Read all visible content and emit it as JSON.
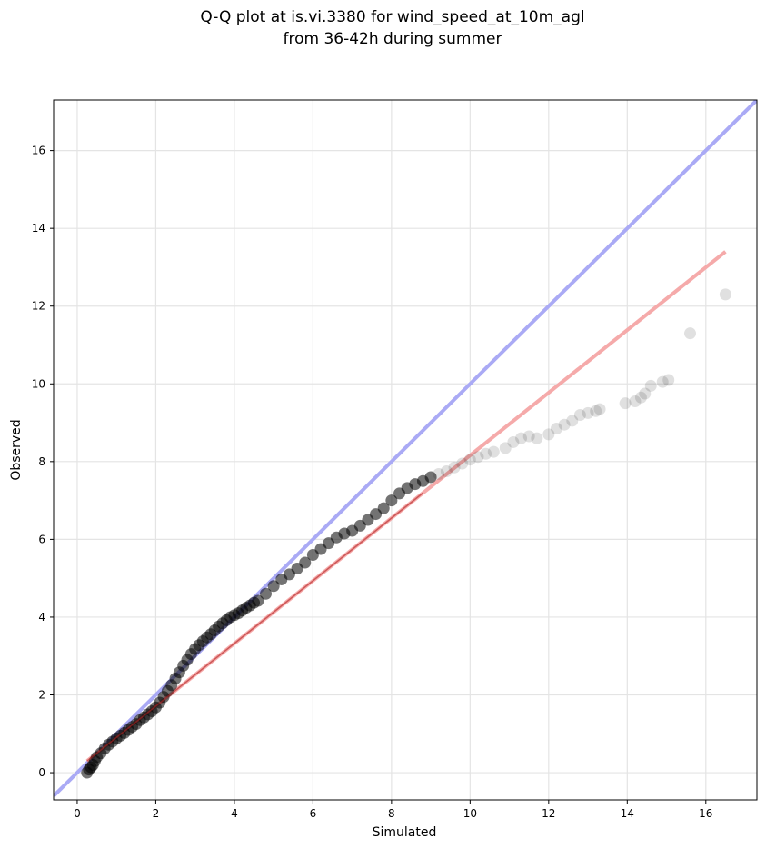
{
  "chart_data": {
    "type": "scatter",
    "title_line1": "Q-Q plot at is.vi.3380 for wind_speed_at_10m_agl",
    "title_line2": "from 36-42h during summer",
    "xlabel": "Simulated",
    "ylabel": "Observed",
    "xlim": [
      -0.6,
      17.3
    ],
    "ylim": [
      -0.7,
      17.3
    ],
    "xticks": [
      0,
      2,
      4,
      6,
      8,
      10,
      12,
      14,
      16
    ],
    "yticks": [
      0,
      2,
      4,
      6,
      8,
      10,
      12,
      14,
      16
    ],
    "grid": true,
    "colors": {
      "points": "#000000",
      "identity_line": "#aaaaf5",
      "fit_line": "#f5aaaa",
      "fit_overlay": "#b02020"
    },
    "identity_line": {
      "x": [
        -0.6,
        17.3
      ],
      "y": [
        -0.6,
        17.3
      ]
    },
    "fit_line": {
      "x": [
        0.25,
        16.5
      ],
      "y": [
        0.3,
        13.4
      ]
    },
    "points": {
      "x": [
        0.25,
        0.3,
        0.35,
        0.4,
        0.45,
        0.5,
        0.6,
        0.7,
        0.8,
        0.9,
        1.0,
        1.1,
        1.2,
        1.3,
        1.4,
        1.5,
        1.6,
        1.7,
        1.8,
        1.9,
        2.0,
        2.1,
        2.2,
        2.3,
        2.4,
        2.5,
        2.6,
        2.7,
        2.8,
        2.9,
        3.0,
        3.1,
        3.2,
        3.3,
        3.4,
        3.5,
        3.6,
        3.7,
        3.8,
        3.9,
        4.0,
        4.1,
        4.2,
        4.3,
        4.4,
        4.5,
        4.6,
        4.8,
        5.0,
        5.2,
        5.4,
        5.6,
        5.8,
        6.0,
        6.2,
        6.4,
        6.6,
        6.8,
        7.0,
        7.2,
        7.4,
        7.6,
        7.8,
        8.0,
        8.2,
        8.4,
        8.6,
        8.8,
        9.0,
        9.2,
        9.4,
        9.6,
        9.8,
        10.0,
        10.2,
        10.4,
        10.6,
        10.9,
        11.1,
        11.3,
        11.5,
        11.7,
        12.0,
        12.2,
        12.4,
        12.6,
        12.8,
        13.0,
        13.2,
        13.3,
        13.95,
        14.2,
        14.35,
        14.45,
        14.6,
        14.9,
        15.05,
        15.6,
        16.5
      ],
      "y": [
        0.0,
        0.08,
        0.14,
        0.2,
        0.3,
        0.4,
        0.5,
        0.62,
        0.72,
        0.8,
        0.88,
        0.95,
        1.02,
        1.1,
        1.18,
        1.25,
        1.35,
        1.42,
        1.5,
        1.58,
        1.68,
        1.8,
        1.95,
        2.1,
        2.25,
        2.42,
        2.58,
        2.75,
        2.9,
        3.05,
        3.18,
        3.28,
        3.38,
        3.48,
        3.56,
        3.66,
        3.76,
        3.84,
        3.92,
        4.0,
        4.05,
        4.1,
        4.17,
        4.24,
        4.3,
        4.37,
        4.42,
        4.6,
        4.8,
        4.97,
        5.1,
        5.25,
        5.4,
        5.6,
        5.75,
        5.9,
        6.05,
        6.15,
        6.22,
        6.35,
        6.5,
        6.65,
        6.8,
        7.0,
        7.18,
        7.32,
        7.42,
        7.5,
        7.6,
        7.68,
        7.75,
        7.85,
        7.95,
        8.05,
        8.12,
        8.2,
        8.25,
        8.35,
        8.5,
        8.6,
        8.65,
        8.6,
        8.7,
        8.85,
        8.95,
        9.05,
        9.2,
        9.25,
        9.3,
        9.35,
        9.5,
        9.55,
        9.65,
        9.75,
        9.95,
        10.05,
        10.1,
        11.3,
        12.3
      ]
    }
  }
}
